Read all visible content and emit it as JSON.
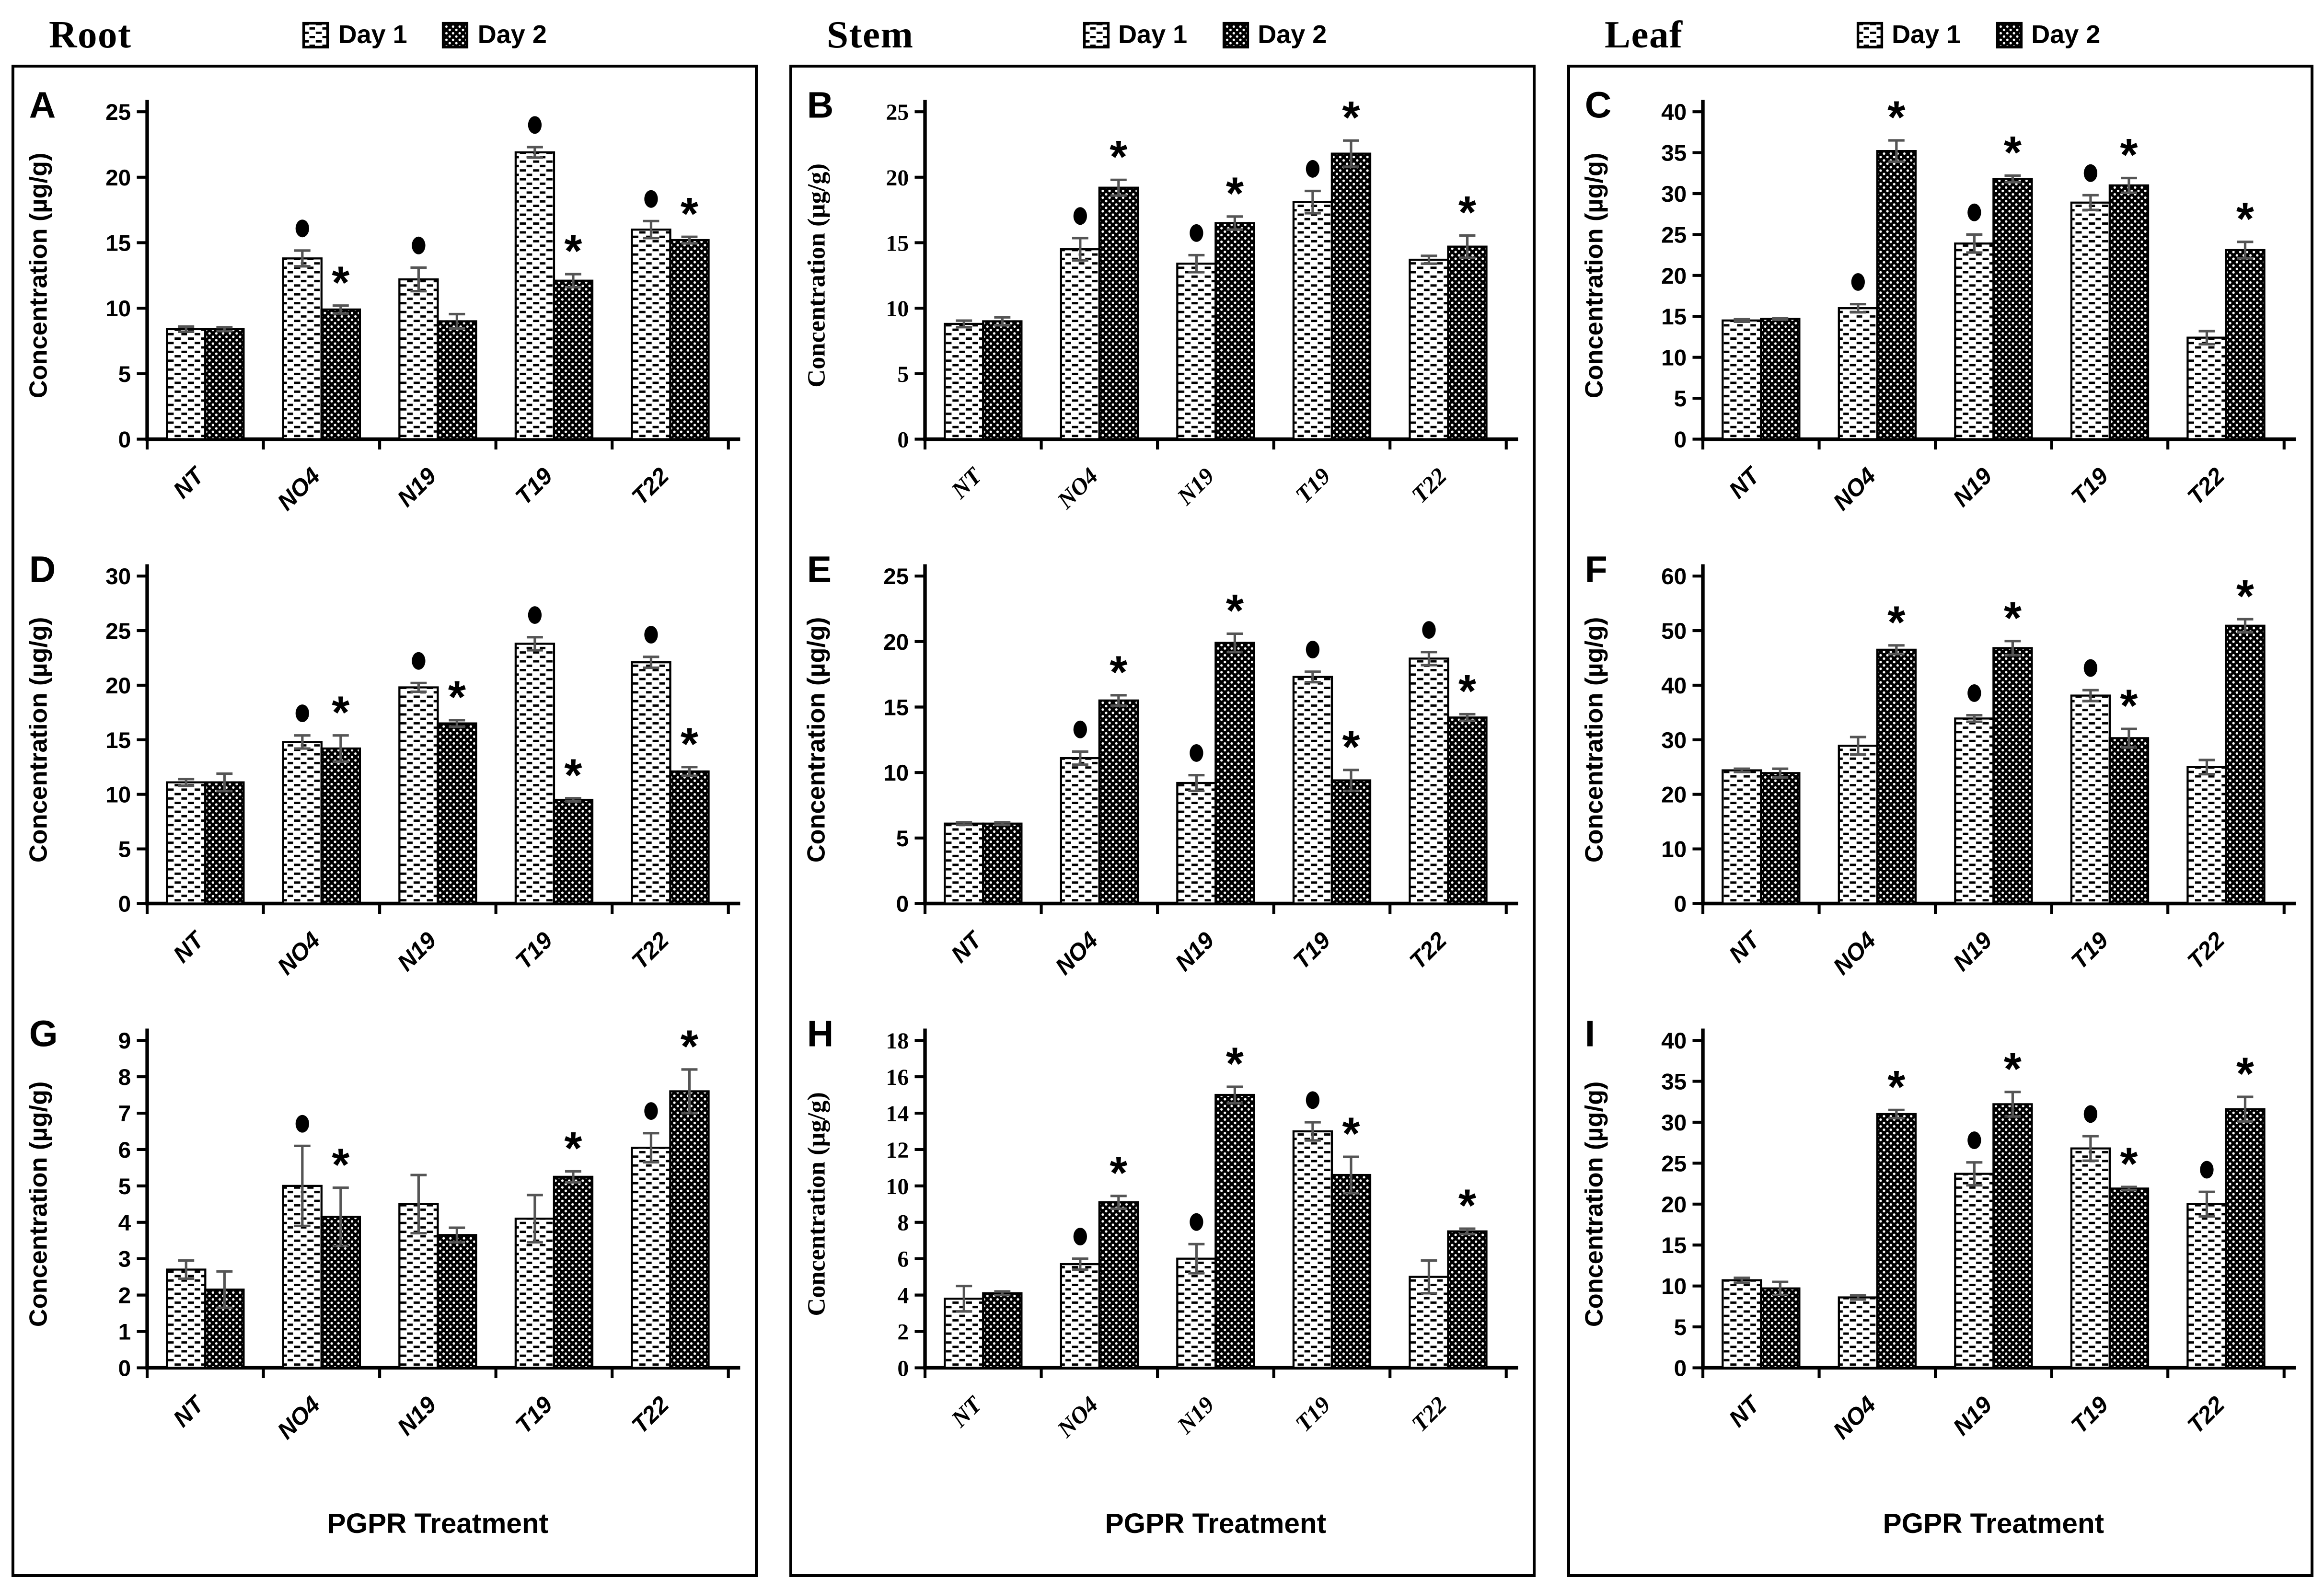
{
  "legend": {
    "day1_label": "Day 1",
    "day2_label": "Day 2"
  },
  "axis": {
    "ylabel": "Concentration (µg/g)",
    "xlabel": "PGPR Treatment",
    "categories": [
      "NT",
      "NO4",
      "N19",
      "T19",
      "T22"
    ]
  },
  "columns": [
    {
      "title": "Root",
      "panels": [
        "A",
        "D",
        "G"
      ]
    },
    {
      "title": "Stem",
      "panels": [
        "B",
        "E",
        "H"
      ]
    },
    {
      "title": "Leaf",
      "panels": [
        "C",
        "F",
        "I"
      ]
    }
  ],
  "colors": {
    "bar_outline": "#000000",
    "day1_fill": "#ffffff",
    "day2_fill": "#000000",
    "error_bar": "#555555",
    "text": "#000000"
  },
  "markers": {
    "day1_significance": "•",
    "day2_significance": "*"
  },
  "chart_data": [
    {
      "panel": "A",
      "organ": "Root",
      "type": "bar",
      "serif": false,
      "ylabel": "Concentration (µg/g)",
      "ylim": [
        0,
        25
      ],
      "ystep": 5,
      "categories": [
        "NT",
        "NO4",
        "N19",
        "T19",
        "T22"
      ],
      "series": [
        {
          "name": "Day 1",
          "values": [
            8.4,
            13.8,
            12.2,
            21.9,
            16.0
          ],
          "errors": [
            0.2,
            0.6,
            0.9,
            0.4,
            0.65
          ],
          "sig": [
            "",
            "dot",
            "dot",
            "dot",
            "dot"
          ]
        },
        {
          "name": "Day 2",
          "values": [
            8.4,
            9.9,
            9.0,
            12.1,
            15.2
          ],
          "errors": [
            0.15,
            0.3,
            0.55,
            0.5,
            0.25
          ],
          "sig": [
            "",
            "star",
            "",
            "star",
            "star"
          ]
        }
      ]
    },
    {
      "panel": "B",
      "organ": "Stem",
      "type": "bar",
      "serif": true,
      "ylabel": "Concentration (µg/g)",
      "ylim": [
        0,
        25
      ],
      "ystep": 5,
      "categories": [
        "NT",
        "NO4",
        "N19",
        "T19",
        "T22"
      ],
      "series": [
        {
          "name": "Day 1",
          "values": [
            8.8,
            14.5,
            13.4,
            18.1,
            13.7
          ],
          "errors": [
            0.25,
            0.85,
            0.65,
            0.85,
            0.3
          ],
          "sig": [
            "",
            "dot",
            "dot",
            "dot",
            ""
          ]
        },
        {
          "name": "Day 2",
          "values": [
            9.0,
            19.2,
            16.5,
            21.8,
            14.7
          ],
          "errors": [
            0.3,
            0.6,
            0.5,
            1.0,
            0.85
          ],
          "sig": [
            "",
            "star",
            "star",
            "star",
            "star"
          ]
        }
      ]
    },
    {
      "panel": "C",
      "organ": "Leaf",
      "type": "bar",
      "serif": false,
      "ylabel": "Concentration (µg/g)",
      "ylim": [
        0,
        40
      ],
      "ystep": 5,
      "categories": [
        "NT",
        "NO4",
        "N19",
        "T19",
        "T22"
      ],
      "series": [
        {
          "name": "Day 1",
          "values": [
            14.5,
            16.0,
            23.9,
            28.9,
            12.4
          ],
          "errors": [
            0.15,
            0.5,
            1.1,
            0.9,
            0.8
          ],
          "sig": [
            "",
            "dot",
            "dot",
            "dot",
            ""
          ]
        },
        {
          "name": "Day 2",
          "values": [
            14.7,
            35.2,
            31.8,
            31.0,
            23.1
          ],
          "errors": [
            0.1,
            1.3,
            0.4,
            0.9,
            1.0
          ],
          "sig": [
            "",
            "star",
            "star",
            "star",
            "star"
          ]
        }
      ]
    },
    {
      "panel": "D",
      "organ": "Root",
      "type": "bar",
      "serif": false,
      "ylabel": "Concentration (µg/g)",
      "ylim": [
        0,
        30
      ],
      "ystep": 5,
      "categories": [
        "NT",
        "NO4",
        "N19",
        "T19",
        "T22"
      ],
      "series": [
        {
          "name": "Day 1",
          "values": [
            11.1,
            14.8,
            19.8,
            23.8,
            22.1
          ],
          "errors": [
            0.3,
            0.6,
            0.4,
            0.6,
            0.5
          ],
          "sig": [
            "",
            "dot",
            "dot",
            "dot",
            "dot"
          ]
        },
        {
          "name": "Day 2",
          "values": [
            11.1,
            14.2,
            16.5,
            9.5,
            12.1
          ],
          "errors": [
            0.8,
            1.2,
            0.3,
            0.15,
            0.4
          ],
          "sig": [
            "",
            "star",
            "star",
            "star",
            "star"
          ]
        }
      ]
    },
    {
      "panel": "E",
      "organ": "Stem",
      "type": "bar",
      "serif": false,
      "ylabel": "Concentration (µg/g)",
      "ylim": [
        0,
        25
      ],
      "ystep": 5,
      "categories": [
        "NT",
        "NO4",
        "N19",
        "T19",
        "T22"
      ],
      "series": [
        {
          "name": "Day 1",
          "values": [
            6.1,
            11.1,
            9.2,
            17.3,
            18.7
          ],
          "errors": [
            0.1,
            0.5,
            0.6,
            0.4,
            0.5
          ],
          "sig": [
            "",
            "dot",
            "dot",
            "dot",
            "dot"
          ]
        },
        {
          "name": "Day 2",
          "values": [
            6.1,
            15.5,
            19.9,
            9.4,
            14.2
          ],
          "errors": [
            0.1,
            0.4,
            0.7,
            0.8,
            0.25
          ],
          "sig": [
            "",
            "star",
            "star",
            "star",
            "star"
          ]
        }
      ]
    },
    {
      "panel": "F",
      "organ": "Leaf",
      "type": "bar",
      "serif": false,
      "ylabel": "Concentration (µg/g)",
      "ylim": [
        0,
        60
      ],
      "ystep": 10,
      "categories": [
        "NT",
        "NO4",
        "N19",
        "T19",
        "T22"
      ],
      "series": [
        {
          "name": "Day 1",
          "values": [
            24.4,
            28.9,
            33.9,
            38.1,
            25.0
          ],
          "errors": [
            0.3,
            1.6,
            0.6,
            1.0,
            1.3
          ],
          "sig": [
            "",
            "",
            "dot",
            "dot",
            ""
          ]
        },
        {
          "name": "Day 2",
          "values": [
            23.9,
            46.5,
            46.8,
            30.3,
            50.9
          ],
          "errors": [
            0.8,
            0.8,
            1.3,
            1.7,
            1.2
          ],
          "sig": [
            "",
            "star",
            "star",
            "star",
            "star"
          ]
        }
      ]
    },
    {
      "panel": "G",
      "organ": "Root",
      "type": "bar",
      "serif": false,
      "ylabel": "Concentration (µg/g)",
      "ylim": [
        0,
        9
      ],
      "ystep": 1,
      "categories": [
        "NT",
        "NO4",
        "N19",
        "T19",
        "T22"
      ],
      "series": [
        {
          "name": "Day 1",
          "values": [
            2.7,
            5.0,
            4.5,
            4.1,
            6.05
          ],
          "errors": [
            0.25,
            1.1,
            0.8,
            0.65,
            0.4
          ],
          "sig": [
            "",
            "dot",
            "",
            "",
            "dot"
          ]
        },
        {
          "name": "Day 2",
          "values": [
            2.15,
            4.15,
            3.65,
            5.25,
            7.6
          ],
          "errors": [
            0.5,
            0.8,
            0.2,
            0.15,
            0.6
          ],
          "sig": [
            "",
            "star",
            "",
            "star",
            "star"
          ]
        }
      ]
    },
    {
      "panel": "H",
      "organ": "Stem",
      "type": "bar",
      "serif": true,
      "ylabel": "Concentration (µg/g)",
      "ylim": [
        0,
        18
      ],
      "ystep": 2,
      "categories": [
        "NT",
        "NO4",
        "N19",
        "T19",
        "T22"
      ],
      "series": [
        {
          "name": "Day 1",
          "values": [
            3.8,
            5.7,
            6.0,
            13.0,
            5.0
          ],
          "errors": [
            0.7,
            0.3,
            0.8,
            0.5,
            0.9
          ],
          "sig": [
            "",
            "dot",
            "dot",
            "dot",
            ""
          ]
        },
        {
          "name": "Day 2",
          "values": [
            4.1,
            9.1,
            15.0,
            10.6,
            7.5
          ],
          "errors": [
            0.1,
            0.35,
            0.45,
            1.0,
            0.15
          ],
          "sig": [
            "",
            "star",
            "star",
            "star",
            "star"
          ]
        }
      ]
    },
    {
      "panel": "I",
      "organ": "Leaf",
      "type": "bar",
      "serif": false,
      "ylabel": "Concentration (µg/g)",
      "ylim": [
        0,
        40
      ],
      "ystep": 5,
      "categories": [
        "NT",
        "NO4",
        "N19",
        "T19",
        "T22"
      ],
      "series": [
        {
          "name": "Day 1",
          "values": [
            10.7,
            8.6,
            23.7,
            26.8,
            20.0
          ],
          "errors": [
            0.3,
            0.25,
            1.4,
            1.5,
            1.5
          ],
          "sig": [
            "",
            "",
            "dot",
            "dot",
            "dot"
          ]
        },
        {
          "name": "Day 2",
          "values": [
            9.7,
            31.0,
            32.2,
            21.9,
            31.6
          ],
          "errors": [
            0.8,
            0.5,
            1.5,
            0.2,
            1.5
          ],
          "sig": [
            "",
            "star",
            "star",
            "star",
            "star"
          ]
        }
      ]
    }
  ]
}
